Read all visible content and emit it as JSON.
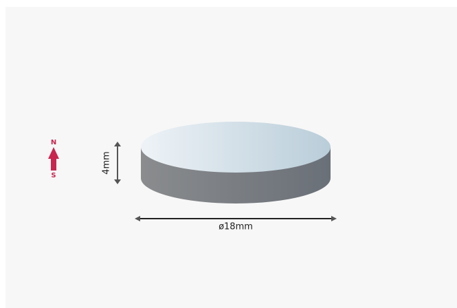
{
  "magnet": {
    "pole_top": "N",
    "pole_bottom": "S",
    "height_label": "4mm",
    "diameter_label": "ø18mm"
  }
}
